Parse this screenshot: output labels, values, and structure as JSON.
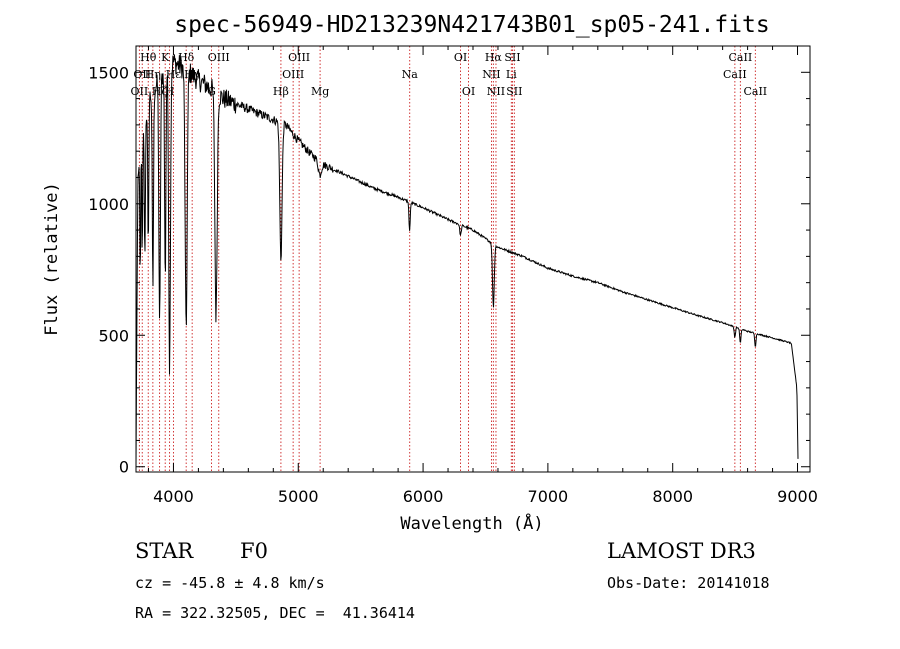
{
  "chart_data": {
    "type": "line",
    "title": "spec-56949-HD213239N421743B01_sp05-241.fits",
    "xlabel": "Wavelength (Å)",
    "ylabel": "Flux (relative)",
    "xlim": [
      3700,
      9100
    ],
    "ylim": [
      -20,
      1600
    ],
    "xticks": [
      4000,
      5000,
      6000,
      7000,
      8000,
      9000
    ],
    "yticks": [
      0,
      500,
      1000,
      1500
    ],
    "continuum": [
      {
        "x": 3700,
        "y": 0
      },
      {
        "x": 3705,
        "y": 400
      },
      {
        "x": 3715,
        "y": 1100
      },
      {
        "x": 3800,
        "y": 1400
      },
      {
        "x": 3900,
        "y": 1480
      },
      {
        "x": 4000,
        "y": 1540
      },
      {
        "x": 4100,
        "y": 1510
      },
      {
        "x": 4200,
        "y": 1470
      },
      {
        "x": 4300,
        "y": 1440
      },
      {
        "x": 4400,
        "y": 1400
      },
      {
        "x": 4500,
        "y": 1380
      },
      {
        "x": 4600,
        "y": 1360
      },
      {
        "x": 4700,
        "y": 1340
      },
      {
        "x": 4800,
        "y": 1320
      },
      {
        "x": 4900,
        "y": 1300
      },
      {
        "x": 5000,
        "y": 1240
      },
      {
        "x": 5100,
        "y": 1190
      },
      {
        "x": 5200,
        "y": 1150
      },
      {
        "x": 5400,
        "y": 1105
      },
      {
        "x": 5600,
        "y": 1060
      },
      {
        "x": 5800,
        "y": 1025
      },
      {
        "x": 6000,
        "y": 985
      },
      {
        "x": 6200,
        "y": 940
      },
      {
        "x": 6400,
        "y": 900
      },
      {
        "x": 6600,
        "y": 835
      },
      {
        "x": 6800,
        "y": 800
      },
      {
        "x": 7000,
        "y": 755
      },
      {
        "x": 7200,
        "y": 725
      },
      {
        "x": 7400,
        "y": 700
      },
      {
        "x": 7600,
        "y": 665
      },
      {
        "x": 7800,
        "y": 635
      },
      {
        "x": 8000,
        "y": 605
      },
      {
        "x": 8200,
        "y": 575
      },
      {
        "x": 8400,
        "y": 548
      },
      {
        "x": 8600,
        "y": 515
      },
      {
        "x": 8800,
        "y": 490
      },
      {
        "x": 8950,
        "y": 470
      },
      {
        "x": 8995,
        "y": 300
      },
      {
        "x": 9005,
        "y": 0
      }
    ],
    "absorption_features": [
      {
        "center": 3734,
        "depth": 500,
        "width": 3
      },
      {
        "center": 3750,
        "depth": 450,
        "width": 3
      },
      {
        "center": 3771,
        "depth": 520,
        "width": 4
      },
      {
        "center": 3798,
        "depth": 600,
        "width": 4
      },
      {
        "center": 3835,
        "depth": 750,
        "width": 5
      },
      {
        "center": 3889,
        "depth": 950,
        "width": 6
      },
      {
        "center": 3934,
        "depth": 800,
        "width": 5
      },
      {
        "center": 3969,
        "depth": 1150,
        "width": 7
      },
      {
        "center": 4102,
        "depth": 1000,
        "width": 8
      },
      {
        "center": 4341,
        "depth": 850,
        "width": 9
      },
      {
        "center": 4861,
        "depth": 520,
        "width": 9
      },
      {
        "center": 5173,
        "depth": 50,
        "width": 12
      },
      {
        "center": 5892,
        "depth": 110,
        "width": 5
      },
      {
        "center": 6300,
        "depth": 40,
        "width": 6
      },
      {
        "center": 6563,
        "depth": 240,
        "width": 7
      },
      {
        "center": 8498,
        "depth": 40,
        "width": 5
      },
      {
        "center": 8542,
        "depth": 55,
        "width": 5
      },
      {
        "center": 8662,
        "depth": 50,
        "width": 5
      }
    ],
    "line_markers": [
      {
        "x": 3727,
        "label": "OII",
        "row": 3
      },
      {
        "x": 3750,
        "label": "OII",
        "row": 2
      },
      {
        "x": 3798,
        "label": "Hθ",
        "row": 1
      },
      {
        "x": 3835,
        "label": "Hη",
        "row": 2
      },
      {
        "x": 3889,
        "label": "Hζ",
        "row": 3
      },
      {
        "x": 3934,
        "label": "K",
        "row": 1
      },
      {
        "x": 3969,
        "label": "H",
        "row": 3
      },
      {
        "x": 4000,
        "label": "Hε",
        "row": 2
      },
      {
        "x": 4102,
        "label": "Hδ",
        "row": 1
      },
      {
        "x": 4150,
        "label": "Hγ",
        "row": 2
      },
      {
        "x": 4305,
        "label": "G",
        "row": 3
      },
      {
        "x": 4363,
        "label": "OIII",
        "row": 1
      },
      {
        "x": 4861,
        "label": "Hβ",
        "row": 3
      },
      {
        "x": 4959,
        "label": "OIII",
        "row": 2
      },
      {
        "x": 5007,
        "label": "OIII",
        "row": 1
      },
      {
        "x": 5175,
        "label": "Mg",
        "row": 3
      },
      {
        "x": 5893,
        "label": "Na",
        "row": 2
      },
      {
        "x": 6300,
        "label": "OI",
        "row": 1
      },
      {
        "x": 6364,
        "label": "OI",
        "row": 3
      },
      {
        "x": 6548,
        "label": "NII",
        "row": 2
      },
      {
        "x": 6563,
        "label": "Hα",
        "row": 1
      },
      {
        "x": 6584,
        "label": "NII",
        "row": 3
      },
      {
        "x": 6707,
        "label": "Li",
        "row": 2
      },
      {
        "x": 6716,
        "label": "SII",
        "row": 1
      },
      {
        "x": 6731,
        "label": "SII",
        "row": 3
      },
      {
        "x": 8498,
        "label": "CaII",
        "row": 2
      },
      {
        "x": 8542,
        "label": "CaII",
        "row": 1
      },
      {
        "x": 8662,
        "label": "CaII",
        "row": 3
      }
    ]
  },
  "info": {
    "object_class": "STAR",
    "subclass": "F0",
    "survey": "LAMOST DR3",
    "redshift": "cz = -45.8 ± 4.8 km/s",
    "obs_date": "Obs-Date: 20141018",
    "coords": "RA = 322.32505, DEC =  41.36414"
  },
  "colors": {
    "marker": "#cc2222",
    "spectrum": "#000000"
  }
}
